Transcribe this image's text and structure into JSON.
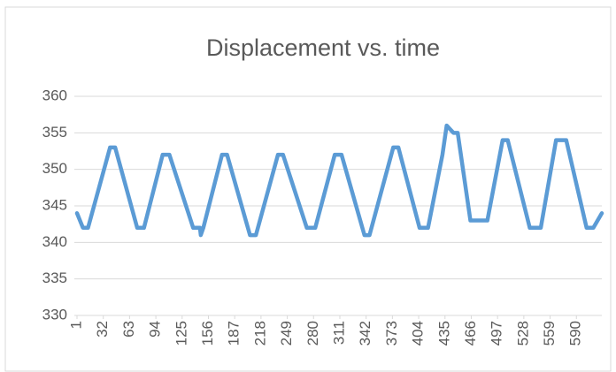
{
  "chart_data": {
    "type": "line",
    "title": "Displacement vs. time",
    "x": [
      1,
      8,
      14,
      40,
      46,
      72,
      80,
      102,
      110,
      138,
      146,
      147,
      150,
      172,
      178,
      205,
      212,
      238,
      244,
      272,
      282,
      305,
      313,
      340,
      346,
      374,
      380,
      405,
      415,
      432,
      437,
      445,
      450,
      465,
      485,
      503,
      509,
      535,
      548,
      566,
      578,
      602,
      610,
      620
    ],
    "series": [
      {
        "name": "Displacement",
        "color": "#5b9bd5",
        "values": [
          344,
          342,
          342,
          353,
          353,
          342,
          342,
          352,
          352,
          342,
          342,
          341,
          342,
          352,
          352,
          341,
          341,
          352,
          352,
          342,
          342,
          352,
          352,
          341,
          341,
          353,
          353,
          342,
          342,
          352,
          356,
          355,
          355,
          343,
          343,
          354,
          354,
          342,
          342,
          354,
          354,
          342,
          342,
          344
        ]
      }
    ],
    "xlim": [
      1,
      620
    ],
    "xticks": [
      1,
      32,
      63,
      94,
      125,
      156,
      187,
      218,
      249,
      280,
      311,
      342,
      373,
      404,
      435,
      466,
      497,
      528,
      559,
      590
    ],
    "ylim": [
      330,
      360
    ],
    "yticks": [
      330,
      335,
      340,
      345,
      350,
      355,
      360
    ],
    "grid": true
  }
}
